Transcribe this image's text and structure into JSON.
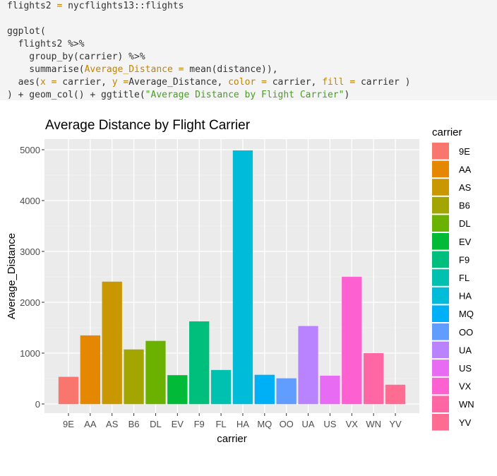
{
  "code": {
    "lines": [
      [
        {
          "t": "flights2 "
        },
        {
          "t": "=",
          "c": "op"
        },
        {
          "t": " nycflights13::flights"
        }
      ],
      [],
      [
        {
          "t": "ggplot("
        }
      ],
      [
        {
          "t": "  flights2 %>%"
        }
      ],
      [
        {
          "t": "    group_by(carrier) %>%"
        }
      ],
      [
        {
          "t": "    summarise("
        },
        {
          "t": "Average_Distance",
          "c": "arg"
        },
        {
          "t": " "
        },
        {
          "t": "=",
          "c": "op"
        },
        {
          "t": " mean(distance)),"
        }
      ],
      [
        {
          "t": "  aes("
        },
        {
          "t": "x",
          "c": "arg"
        },
        {
          "t": " "
        },
        {
          "t": "=",
          "c": "op"
        },
        {
          "t": " carrier, "
        },
        {
          "t": "y",
          "c": "arg"
        },
        {
          "t": " "
        },
        {
          "t": "=",
          "c": "op"
        },
        {
          "t": "Average_Distance, "
        },
        {
          "t": "color",
          "c": "arg"
        },
        {
          "t": " "
        },
        {
          "t": "=",
          "c": "op"
        },
        {
          "t": " carrier, "
        },
        {
          "t": "fill",
          "c": "arg"
        },
        {
          "t": " "
        },
        {
          "t": "=",
          "c": "op"
        },
        {
          "t": " carrier )"
        }
      ],
      [
        {
          "t": ") + geom_col() + ggtitle("
        },
        {
          "t": "\"Average Distance by Flight Carrier\"",
          "c": "str"
        },
        {
          "t": ")"
        }
      ]
    ]
  },
  "chart_data": {
    "type": "bar",
    "title": "Average Distance by Flight Carrier",
    "xlabel": "carrier",
    "ylabel": "Average_Distance",
    "ylim": [
      0,
      5200
    ],
    "yticks": [
      0,
      1000,
      2000,
      3000,
      4000,
      5000
    ],
    "grid": true,
    "legend_title": "carrier",
    "legend_position": "right",
    "categories": [
      "9E",
      "AA",
      "AS",
      "B6",
      "DL",
      "EV",
      "F9",
      "FL",
      "HA",
      "MQ",
      "OO",
      "UA",
      "US",
      "VX",
      "WN",
      "YV"
    ],
    "values": [
      530,
      1345,
      2402,
      1069,
      1237,
      563,
      1620,
      665,
      4983,
      570,
      501,
      1529,
      553,
      2499,
      996,
      375
    ],
    "colors": [
      "#F8766D",
      "#E58700",
      "#C99800",
      "#A3A500",
      "#6BB100",
      "#00BA38",
      "#00BF7D",
      "#00C0AF",
      "#00BCD8",
      "#00B0F6",
      "#619CFF",
      "#B983FF",
      "#E76BF3",
      "#FD61D1",
      "#FF67A4",
      "#FF6C91"
    ]
  }
}
